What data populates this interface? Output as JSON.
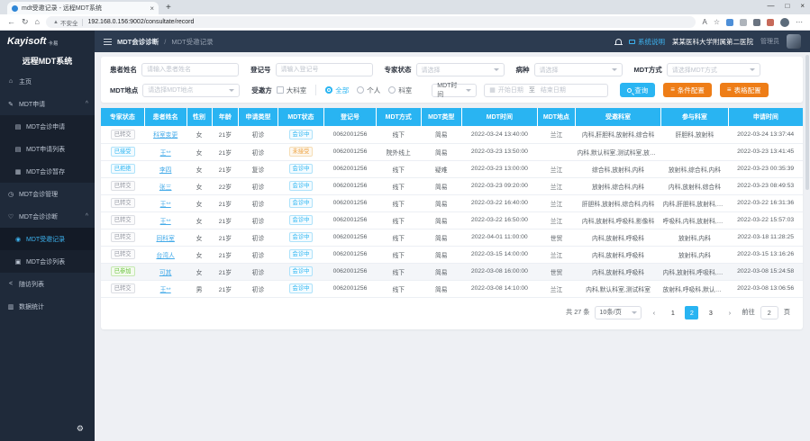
{
  "browser": {
    "tab_title": "mdt受邀记录 - 远程MDT系统",
    "security_label": "不安全",
    "url": "192.168.0.156:9002/consultate/record"
  },
  "sidebar": {
    "logo": "Kayisoft",
    "logo_suffix": "卡易",
    "system_title": "远程MDT系统",
    "items": [
      {
        "id": "home",
        "label": "主页",
        "icon": "home-icon",
        "glyph": "⌂",
        "level": 0,
        "group": false,
        "active": false
      },
      {
        "id": "mdt-apply",
        "label": "MDT申请",
        "icon": "edit-icon",
        "glyph": "✎",
        "level": 0,
        "group": true,
        "active": false
      },
      {
        "id": "mdt-apply-form",
        "label": "MDT会诊申请",
        "icon": "form-icon",
        "glyph": "▤",
        "level": 1,
        "group": false,
        "active": false
      },
      {
        "id": "mdt-apply-list",
        "label": "MDT申请列表",
        "icon": "list-icon",
        "glyph": "▤",
        "level": 1,
        "group": false,
        "active": false
      },
      {
        "id": "mdt-draft",
        "label": "MDT会诊暂存",
        "icon": "draft-icon",
        "glyph": "▦",
        "level": 1,
        "group": false,
        "active": false
      },
      {
        "id": "mdt-manage",
        "label": "MDT会诊管理",
        "icon": "clock-icon",
        "glyph": "◷",
        "level": 0,
        "group": false,
        "active": false
      },
      {
        "id": "mdt-diagnose",
        "label": "MDT会诊诊断",
        "icon": "heart-icon",
        "glyph": "♡",
        "level": 0,
        "group": true,
        "active": false
      },
      {
        "id": "mdt-invited",
        "label": "MDT受邀记录",
        "icon": "record-icon",
        "glyph": "◉",
        "level": 1,
        "group": false,
        "active": true
      },
      {
        "id": "mdt-list",
        "label": "MDT会诊列表",
        "icon": "list-icon",
        "glyph": "▣",
        "level": 1,
        "group": false,
        "active": false
      },
      {
        "id": "followup-list",
        "label": "随访列表",
        "icon": "share-icon",
        "glyph": "<",
        "level": 0,
        "group": false,
        "active": false
      },
      {
        "id": "statistics",
        "label": "数据统计",
        "icon": "bar-chart-icon",
        "glyph": "▥",
        "level": 0,
        "group": false,
        "active": false
      }
    ]
  },
  "topbar": {
    "breadcrumb_section": "MDT会诊诊断",
    "breadcrumb_separator": "/",
    "breadcrumb_current": "MDT受邀记录",
    "system_help": "系统说明",
    "hospital": "某某医科大学附属第二医院",
    "role": "管理员"
  },
  "filters": {
    "patient_name": {
      "label": "患者姓名",
      "placeholder": "请输入患者姓名"
    },
    "reg_no": {
      "label": "登记号",
      "placeholder": "请输入登记号"
    },
    "expert_status": {
      "label": "专家状态",
      "placeholder": "请选择"
    },
    "disease": {
      "label": "病种",
      "placeholder": "请选择"
    },
    "mdt_mode": {
      "label": "MDT方式",
      "placeholder": "请选择MDT方式"
    },
    "mdt_place": {
      "label": "MDT地点",
      "placeholder": "请选择MDT地点"
    },
    "invited_side": {
      "label": "受邀方",
      "checkbox_label": "大科室",
      "radios": [
        "全部",
        "个人",
        "科室"
      ],
      "selected": "全部"
    },
    "time_field": {
      "value": "MDT时间"
    },
    "date_range": {
      "start_placeholder": "开始日期",
      "separator": "至",
      "end_placeholder": "结束日期"
    },
    "buttons": {
      "query": "查询",
      "condition_config": "条件配置",
      "table_config": "表格配置"
    }
  },
  "accent_colors": {
    "cyan": "#29b4f2",
    "orange": "#ee7d17",
    "green": "#67c23a",
    "gray": "#9296a0"
  },
  "table": {
    "columns": [
      {
        "key": "expert_status",
        "label": "专家状态",
        "w": "6.2%"
      },
      {
        "key": "name",
        "label": "患者姓名",
        "w": "6%"
      },
      {
        "key": "gender",
        "label": "性别",
        "w": "3.6%"
      },
      {
        "key": "age",
        "label": "年龄",
        "w": "3.8%"
      },
      {
        "key": "apply_type",
        "label": "申请类型",
        "w": "5.6%"
      },
      {
        "key": "mdt_status",
        "label": "MDT状态",
        "w": "6.6%"
      },
      {
        "key": "reg_no",
        "label": "登记号",
        "w": "7.4%"
      },
      {
        "key": "mdt_mode",
        "label": "MDT方式",
        "w": "6.4%"
      },
      {
        "key": "mdt_type",
        "label": "MDT类型",
        "w": "5.8%"
      },
      {
        "key": "mdt_time",
        "label": "MDT时间",
        "w": "10.8%"
      },
      {
        "key": "mdt_place",
        "label": "MDT地点",
        "w": "5.4%"
      },
      {
        "key": "invited",
        "label": "受邀科室",
        "w": "12.2%"
      },
      {
        "key": "participants",
        "label": "参与科室",
        "w": "9.6%"
      },
      {
        "key": "apply_time",
        "label": "申请时间",
        "w": "10.6%"
      }
    ],
    "rows": [
      {
        "expert_status": {
          "text": "已转交",
          "variant": "gray"
        },
        "name": "科室变更",
        "gender": "女",
        "age": "21岁",
        "apply_type": "初诊",
        "mdt_status": {
          "text": "会诊中",
          "variant": "cyan"
        },
        "reg_no": "0062001256",
        "mdt_mode": "线下",
        "mdt_type": "简易",
        "mdt_time": "2022-03-24 13:40:00",
        "mdt_place": "兰江",
        "invited": "内科,肝胆科,放射科,综合科",
        "participants": "肝胆科,放射科",
        "apply_time": "2022-03-24 13:37:44",
        "highlight": false
      },
      {
        "expert_status": {
          "text": "已接受",
          "variant": "cyan"
        },
        "name": "王**",
        "gender": "女",
        "age": "21岁",
        "apply_type": "初诊",
        "mdt_status": {
          "text": "未接受",
          "variant": "orange"
        },
        "reg_no": "0062001256",
        "mdt_mode": "院外线上",
        "mdt_type": "简易",
        "mdt_time": "2022-03-23 13:50:00",
        "mdt_place": "",
        "invited": "内科,默认科室,测试科室,放射科",
        "participants": "",
        "apply_time": "2022-03-23 13:41:45",
        "highlight": false
      },
      {
        "expert_status": {
          "text": "已拒绝",
          "variant": "cyan"
        },
        "name": "李四",
        "gender": "女",
        "age": "21岁",
        "apply_type": "复诊",
        "mdt_status": {
          "text": "会诊中",
          "variant": "cyan"
        },
        "reg_no": "0062001256",
        "mdt_mode": "线下",
        "mdt_type": "疑难",
        "mdt_time": "2022-03-23 13:00:00",
        "mdt_place": "兰江",
        "invited": "综合科,放射科,内科",
        "participants": "放射科,综合科,内科",
        "apply_time": "2022-03-23 00:35:39",
        "highlight": false
      },
      {
        "expert_status": {
          "text": "已转交",
          "variant": "gray"
        },
        "name": "张三",
        "gender": "女",
        "age": "22岁",
        "apply_type": "初诊",
        "mdt_status": {
          "text": "会诊中",
          "variant": "cyan"
        },
        "reg_no": "0062001256",
        "mdt_mode": "线下",
        "mdt_type": "简易",
        "mdt_time": "2022-03-23 09:20:00",
        "mdt_place": "兰江",
        "invited": "放射科,综合科,内科",
        "participants": "内科,放射科,综合科",
        "apply_time": "2022-03-23 08:49:53",
        "highlight": false
      },
      {
        "expert_status": {
          "text": "已转交",
          "variant": "gray"
        },
        "name": "王**",
        "gender": "女",
        "age": "21岁",
        "apply_type": "初诊",
        "mdt_status": {
          "text": "会诊中",
          "variant": "cyan"
        },
        "reg_no": "0062001256",
        "mdt_mode": "线下",
        "mdt_type": "简易",
        "mdt_time": "2022-03-22 16:40:00",
        "mdt_place": "兰江",
        "invited": "肝胆科,放射科,综合科,内科",
        "participants": "内科,肝胆科,放射科,综合科",
        "apply_time": "2022-03-22 16:31:36",
        "highlight": false
      },
      {
        "expert_status": {
          "text": "已转交",
          "variant": "gray"
        },
        "name": "王**",
        "gender": "女",
        "age": "21岁",
        "apply_type": "初诊",
        "mdt_status": {
          "text": "会诊中",
          "variant": "cyan"
        },
        "reg_no": "0062001256",
        "mdt_mode": "线下",
        "mdt_type": "简易",
        "mdt_time": "2022-03-22 16:50:00",
        "mdt_place": "兰江",
        "invited": "内科,放射科,呼吸科,影像科",
        "participants": "呼吸科,内科,放射科,影像科",
        "apply_time": "2022-03-22 15:57:03",
        "highlight": false
      },
      {
        "expert_status": {
          "text": "已转交",
          "variant": "gray"
        },
        "name": "同科室",
        "gender": "女",
        "age": "21岁",
        "apply_type": "初诊",
        "mdt_status": {
          "text": "会诊中",
          "variant": "cyan"
        },
        "reg_no": "0062001256",
        "mdt_mode": "线下",
        "mdt_type": "简易",
        "mdt_time": "2022-04-01 11:00:00",
        "mdt_place": "世贸",
        "invited": "内科,放射科,呼吸科",
        "participants": "放射科,内科",
        "apply_time": "2022-03-18 11:28:25",
        "highlight": false
      },
      {
        "expert_status": {
          "text": "已转交",
          "variant": "gray"
        },
        "name": "台湾人",
        "gender": "女",
        "age": "21岁",
        "apply_type": "初诊",
        "mdt_status": {
          "text": "会诊中",
          "variant": "cyan"
        },
        "reg_no": "0062001256",
        "mdt_mode": "线下",
        "mdt_type": "简易",
        "mdt_time": "2022-03-15 14:00:00",
        "mdt_place": "兰江",
        "invited": "内科,放射科,呼吸科",
        "participants": "放射科,内科",
        "apply_time": "2022-03-15 13:16:26",
        "highlight": false
      },
      {
        "expert_status": {
          "text": "已参加",
          "variant": "green"
        },
        "name": "可其",
        "gender": "女",
        "age": "21岁",
        "apply_type": "初诊",
        "mdt_status": {
          "text": "会诊中",
          "variant": "cyan"
        },
        "reg_no": "0062001256",
        "mdt_mode": "线下",
        "mdt_type": "简易",
        "mdt_time": "2022-03-08 16:00:00",
        "mdt_place": "世贸",
        "invited": "内科,放射科,呼吸科",
        "participants": "内科,放射科,呼吸科,测试科室",
        "apply_time": "2022-03-08 15:24:58",
        "highlight": true
      },
      {
        "expert_status": {
          "text": "已转交",
          "variant": "gray"
        },
        "name": "王**",
        "gender": "男",
        "age": "21岁",
        "apply_type": "初诊",
        "mdt_status": {
          "text": "会诊中",
          "variant": "cyan"
        },
        "reg_no": "0062001256",
        "mdt_mode": "线下",
        "mdt_type": "简易",
        "mdt_time": "2022-03-08 14:10:00",
        "mdt_place": "兰江",
        "invited": "内科,默认科室,测试科室",
        "participants": "放射科,呼吸科,默认科室,测...",
        "apply_time": "2022-03-08 13:06:56",
        "highlight": false
      }
    ]
  },
  "pagination": {
    "total_label": "共 27 条",
    "page_size_label": "10条/页",
    "pages": [
      "1",
      "2",
      "3"
    ],
    "active_page": "2",
    "prev": "‹",
    "next": "›",
    "goto_label": "前往",
    "goto_value": "2",
    "goto_unit": "页"
  }
}
